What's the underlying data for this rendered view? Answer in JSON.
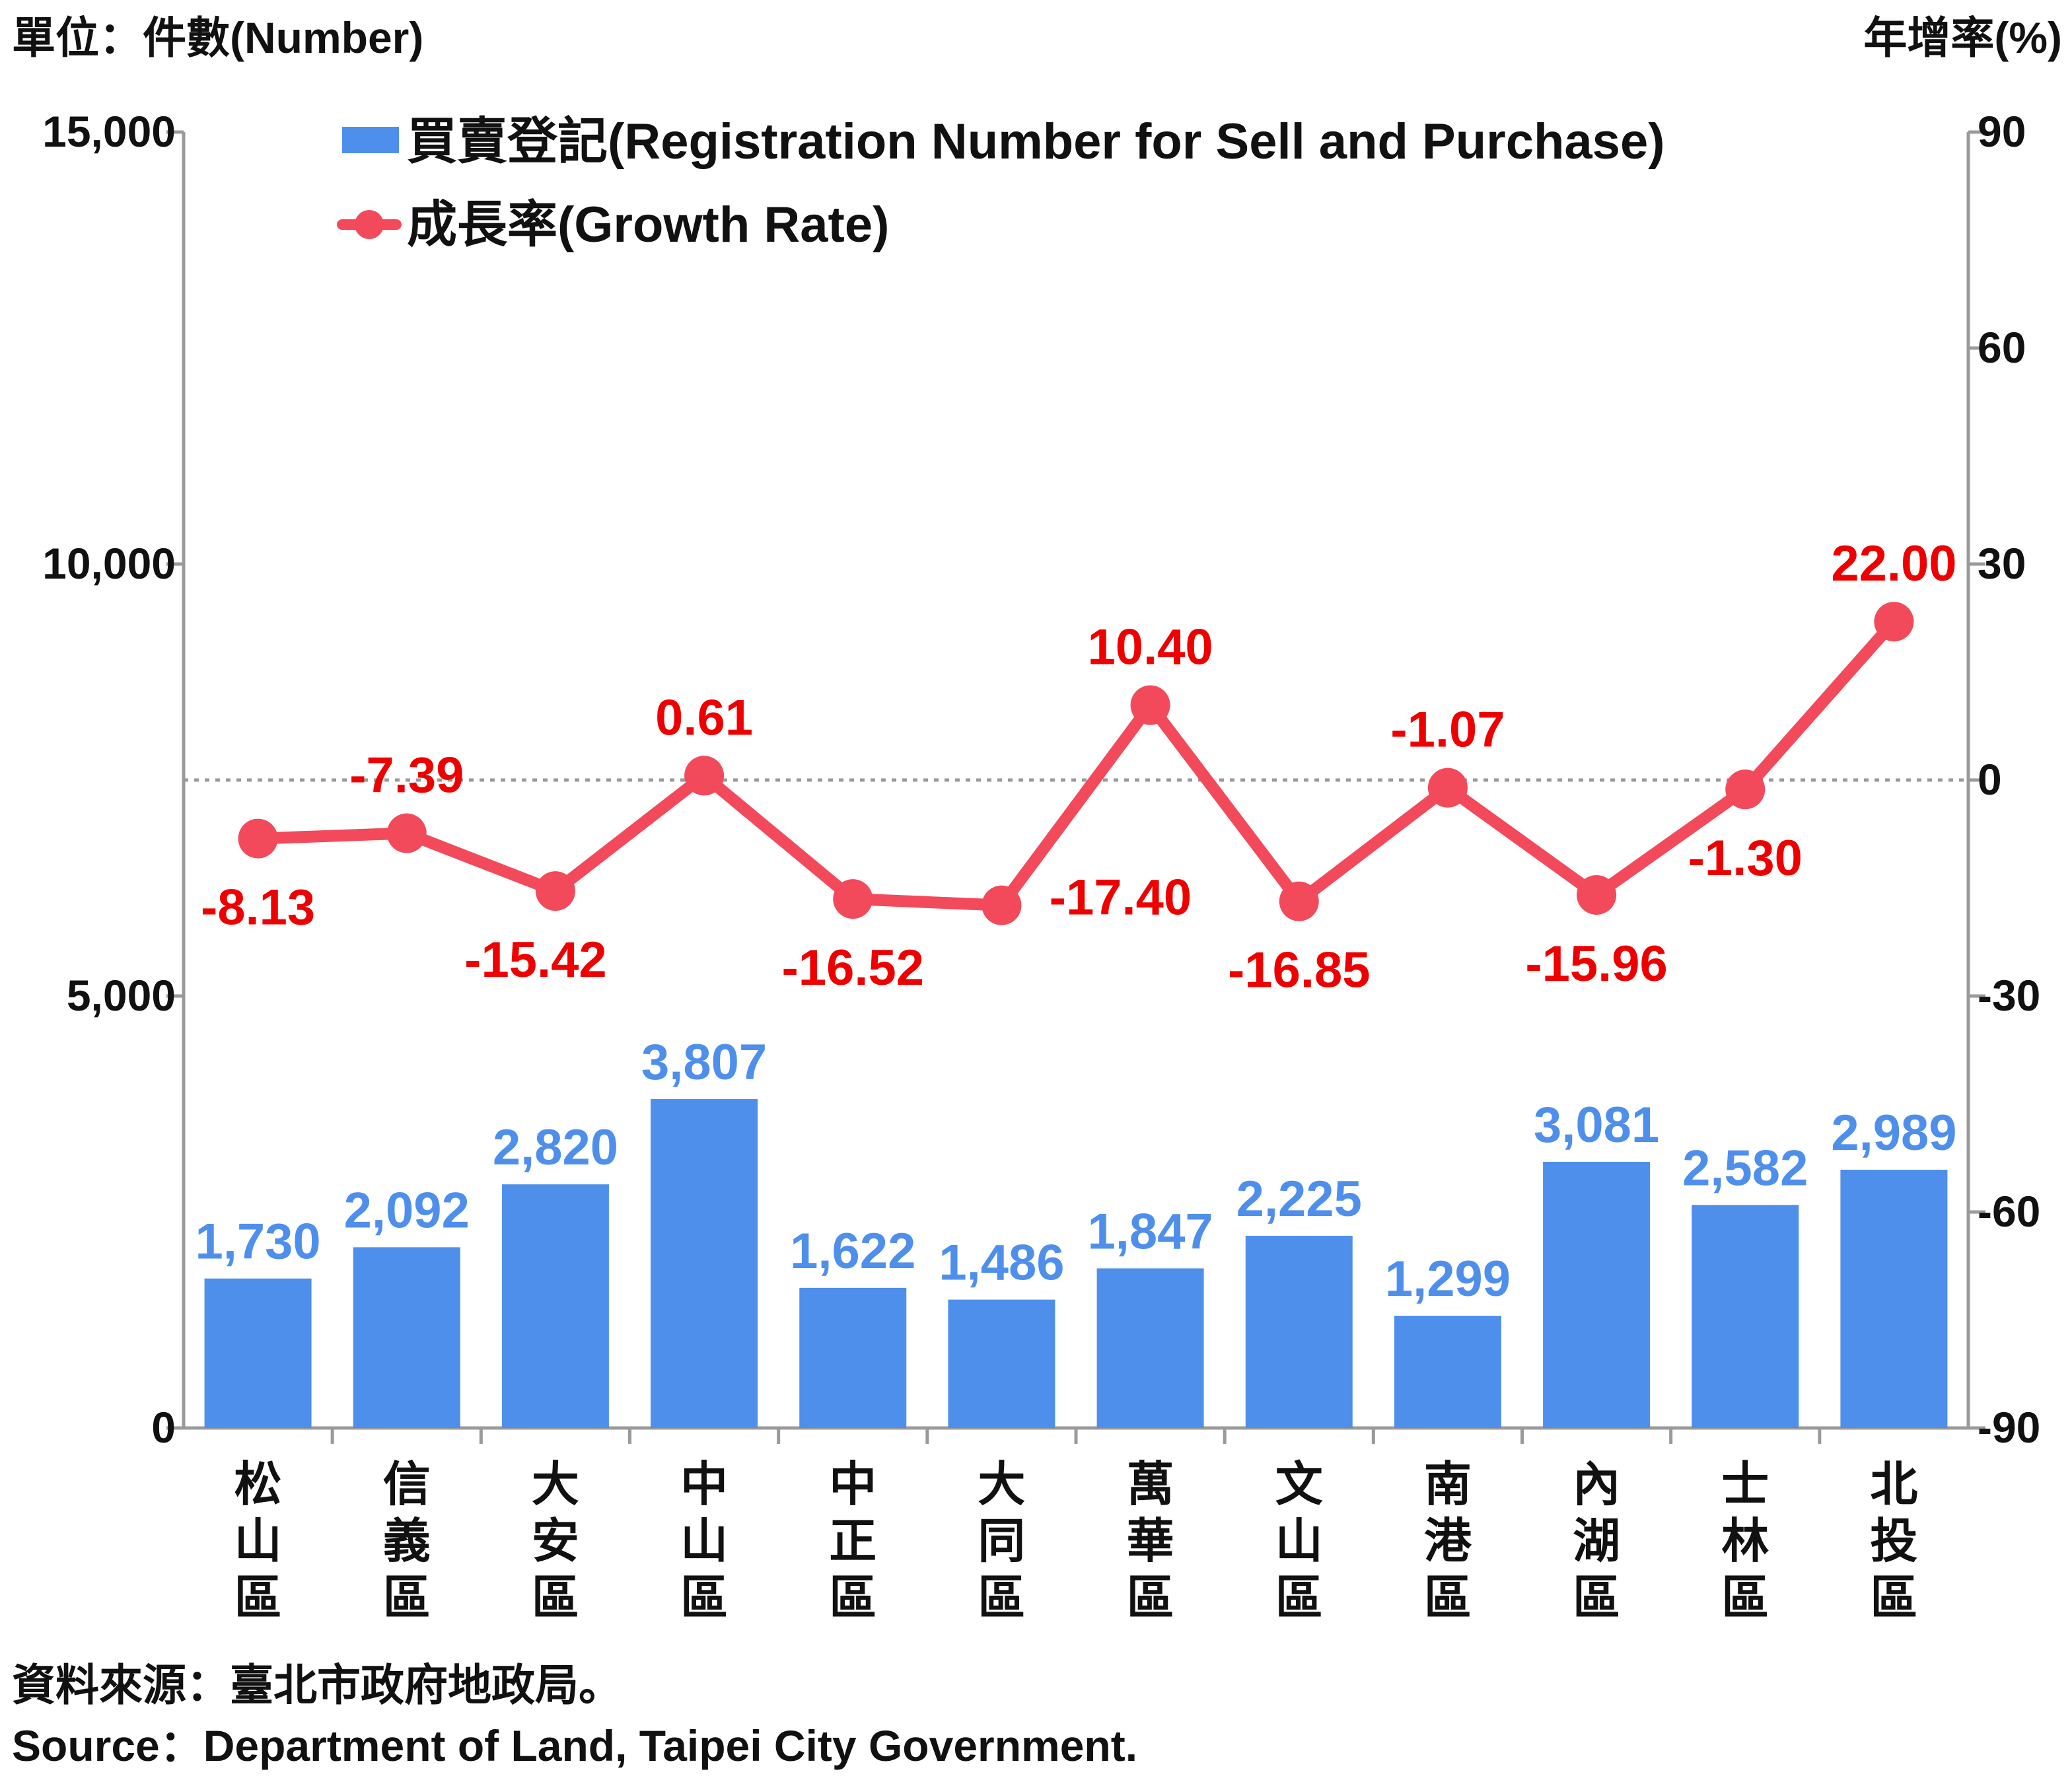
{
  "units": {
    "left": "單位：件數(Number)",
    "right": "年增率(%)"
  },
  "legend": {
    "bar": "買賣登記(Registration Number for Sell and Purchase)",
    "line": "成長率(Growth Rate)"
  },
  "source": {
    "zh": "資料來源：臺北市政府地政局。",
    "en": "Source：Department of Land, Taipei City Government."
  },
  "colors": {
    "bar": "#4f8fec",
    "bar_label": "#4f8fec",
    "line": "#f24a5b",
    "line_label": "#ee0000",
    "axis": "#9a9a9a",
    "zero_line": "#9a9a9a"
  },
  "chart_data": {
    "type": "bar",
    "categories": [
      "松山區",
      "信義區",
      "大安區",
      "中山區",
      "中正區",
      "大同區",
      "萬華區",
      "文山區",
      "南港區",
      "內湖區",
      "士林區",
      "北投區"
    ],
    "series": [
      {
        "name": "買賣登記(Registration Number for Sell and Purchase)",
        "type": "bar",
        "axis": "left",
        "values": [
          1730,
          2092,
          2820,
          3807,
          1622,
          1486,
          1847,
          2225,
          1299,
          3081,
          2582,
          2989
        ],
        "labels": [
          "1,730",
          "2,092",
          "2,820",
          "3,807",
          "1,622",
          "1,486",
          "1,847",
          "2,225",
          "1,299",
          "3,081",
          "2,582",
          "2,989"
        ]
      },
      {
        "name": "成長率(Growth Rate)",
        "type": "line",
        "axis": "right",
        "values": [
          -8.13,
          -7.39,
          -15.42,
          0.61,
          -16.52,
          -17.4,
          10.4,
          -16.85,
          -1.07,
          -15.96,
          -1.3,
          22.0
        ],
        "labels": [
          "-8.13",
          "-7.39",
          "-15.42",
          "0.61",
          "-16.52",
          "-17.40",
          "10.40",
          "-16.85",
          "-1.07",
          "-15.96",
          "-1.30",
          "22.00"
        ]
      }
    ],
    "y_left": {
      "range": [
        0,
        15000
      ],
      "ticks": [
        0,
        5000,
        10000,
        15000
      ],
      "tick_labels": [
        "0",
        "5,000",
        "10,000",
        "15,000"
      ]
    },
    "y_right": {
      "range": [
        -90,
        90
      ],
      "ticks": [
        -90,
        -60,
        -30,
        0,
        30,
        60,
        90
      ],
      "tick_labels": [
        "-90",
        "-60",
        "-30",
        "0",
        "30",
        "60",
        "90"
      ]
    },
    "zero_reference_line": true,
    "grid": false,
    "legend_position": "top-left"
  }
}
